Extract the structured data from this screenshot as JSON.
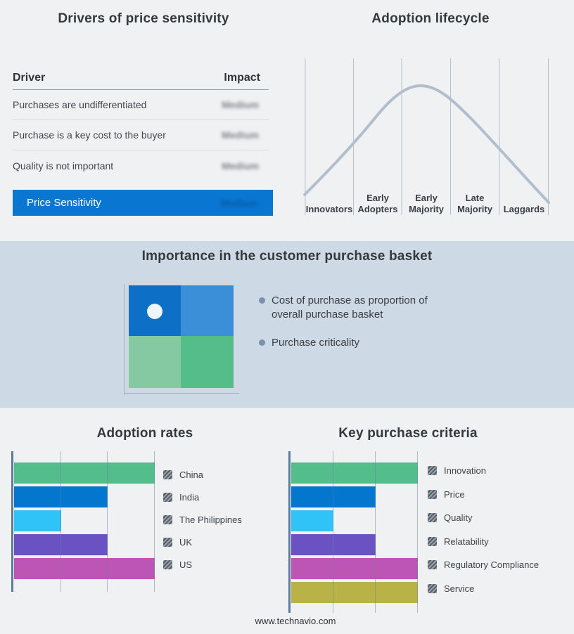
{
  "page": {
    "footer_url": "www.technavio.com",
    "theme": {
      "background": "#f0f1f3",
      "band_background": "#cdd9e4",
      "accent_blue": "#0977d2",
      "axis_color": "#5d7b9d",
      "curve_color": "#b2becd",
      "hatch_dark": "#565d67",
      "hatch_light": "#99a1ab"
    }
  },
  "drivers_panel": {
    "title": "Drivers of price sensitivity",
    "table": {
      "header": {
        "driver": "Driver",
        "impact": "Impact"
      },
      "rows": [
        {
          "driver": "Purchases are undifferentiated",
          "impact": "Medium"
        },
        {
          "driver": "Purchase is a key cost to the buyer",
          "impact": "Medium"
        },
        {
          "driver": "Quality is not important",
          "impact": "Medium"
        }
      ],
      "summary_row": {
        "label": "Price Sensitivity",
        "impact": "Medium"
      },
      "impact_values_blurred": true
    }
  },
  "lifecycle_panel": {
    "title": "Adoption lifecycle",
    "stages": [
      {
        "lines": [
          "Innovators"
        ]
      },
      {
        "lines": [
          "Early",
          "Adopters"
        ]
      },
      {
        "lines": [
          "Early",
          "Majority"
        ]
      },
      {
        "lines": [
          "Late",
          "Majority"
        ]
      },
      {
        "lines": [
          "Laggards"
        ]
      }
    ],
    "curve_shape": "bell curve peaking over Early Majority"
  },
  "basket_panel": {
    "title": "Importance in the customer purchase basket",
    "bullets": [
      "Cost of purchase as proportion of overall purchase basket",
      "Purchase criticality"
    ],
    "matrix": {
      "quadrant_colors": {
        "top_left": "#0d6fc5",
        "top_right": "#3a8fd8",
        "bottom_left": "#84c9a1",
        "bottom_right": "#54bd8a"
      },
      "marker": {
        "quadrant": "top_left",
        "color": "#eef6fc"
      }
    }
  },
  "chart_data": [
    {
      "id": "adoption_rates",
      "type": "bar",
      "orientation": "horizontal",
      "title": "Adoption rates",
      "categories": [
        "China",
        "India",
        "The Philippines",
        "UK",
        "US"
      ],
      "values": [
        3,
        2,
        1,
        2,
        3
      ],
      "xlim": [
        0,
        3
      ],
      "gridline_divisions": 3,
      "colors": [
        "#54bd8c",
        "#0377cd",
        "#2fc3f7",
        "#6b52c2",
        "#bd55b5"
      ],
      "legend_position": "right"
    },
    {
      "id": "key_purchase_criteria",
      "type": "bar",
      "orientation": "horizontal",
      "title": "Key purchase criteria",
      "categories": [
        "Innovation",
        "Price",
        "Quality",
        "Relatability",
        "Regulatory Compliance",
        "Service"
      ],
      "values": [
        3,
        2,
        1,
        2,
        3,
        3
      ],
      "xlim": [
        0,
        3
      ],
      "gridline_divisions": 3,
      "colors": [
        "#54bd8c",
        "#0377cd",
        "#2fc3f7",
        "#6b52c2",
        "#bd55b5",
        "#b9b247"
      ],
      "legend_position": "right"
    }
  ]
}
